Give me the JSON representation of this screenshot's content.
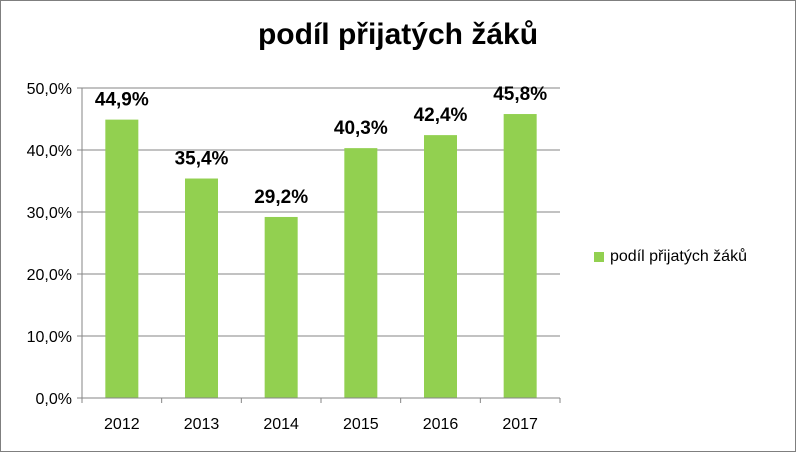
{
  "chart_data": {
    "type": "bar",
    "title": "podíl přijatých žáků",
    "categories": [
      "2012",
      "2013",
      "2014",
      "2015",
      "2016",
      "2017"
    ],
    "series": [
      {
        "name": "podíl přijatých žáků",
        "values": [
          44.9,
          35.4,
          29.2,
          40.3,
          42.4,
          45.8
        ],
        "labels": [
          "44,9%",
          "35,4%",
          "29,2%",
          "40,3%",
          "42,4%",
          "45,8%"
        ],
        "color": "#92d050"
      }
    ],
    "ylim": [
      0,
      50
    ],
    "yticks": [
      0,
      10,
      20,
      30,
      40,
      50
    ],
    "ytick_labels": [
      "0,0%",
      "10,0%",
      "20,0%",
      "30,0%",
      "40,0%",
      "50,0%"
    ],
    "grid": true,
    "legend": "right"
  }
}
